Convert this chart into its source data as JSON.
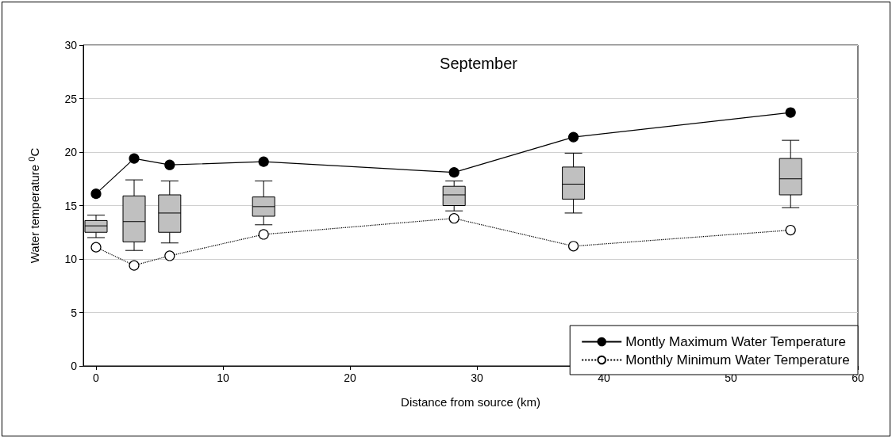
{
  "chart_data": {
    "type": "line",
    "title": "September",
    "xlabel": "Distance from source (km)",
    "ylabel": "Water temperature $^{0}$C",
    "xlim": [
      -1,
      60
    ],
    "xticks": [
      0,
      10,
      20,
      30,
      40,
      50,
      60
    ],
    "ylim": [
      0,
      30
    ],
    "yticks": [
      0,
      5,
      10,
      15,
      20,
      25,
      30
    ],
    "grid": "y",
    "legend": "bottom right",
    "series": [
      {
        "type": "box",
        "color": "#c0c0c0",
        "x": [
          0,
          3,
          5.8,
          13.2,
          28.2,
          37.6,
          54.7
        ],
        "boxes": [
          {
            "low": 12.0,
            "q1": 12.5,
            "median": 13.1,
            "q3": 13.6,
            "high": 14.1
          },
          {
            "low": 10.8,
            "q1": 11.6,
            "median": 13.5,
            "q3": 15.9,
            "high": 17.4
          },
          {
            "low": 11.5,
            "q1": 12.5,
            "median": 14.3,
            "q3": 16.0,
            "high": 17.3
          },
          {
            "low": 13.2,
            "q1": 14.0,
            "median": 14.9,
            "q3": 15.8,
            "high": 17.3
          },
          {
            "low": 14.5,
            "q1": 15.0,
            "median": 16.0,
            "q3": 16.8,
            "high": 17.3
          },
          {
            "low": 14.3,
            "q1": 15.6,
            "median": 17.0,
            "q3": 18.6,
            "high": 19.9
          },
          {
            "low": 14.8,
            "q1": 16.0,
            "median": 17.5,
            "q3": 19.4,
            "high": 21.1
          }
        ]
      },
      {
        "name": "Montly Maximum Water Temperature",
        "color": "#000000",
        "marker": "circle",
        "line_style": "solid",
        "x": [
          0,
          3,
          5.8,
          13.2,
          28.2,
          37.6,
          54.7
        ],
        "values": [
          16.1,
          19.4,
          18.8,
          19.1,
          18.1,
          21.4,
          23.7
        ]
      },
      {
        "name": "Monthly Minimum Water Temperature",
        "color": "#000000",
        "marker": "circle",
        "line_style": "dotted",
        "x": [
          0,
          3,
          5.8,
          13.2,
          28.2,
          37.6,
          54.7
        ],
        "values": [
          11.1,
          9.4,
          10.3,
          12.3,
          13.8,
          11.2,
          12.7
        ]
      }
    ]
  }
}
